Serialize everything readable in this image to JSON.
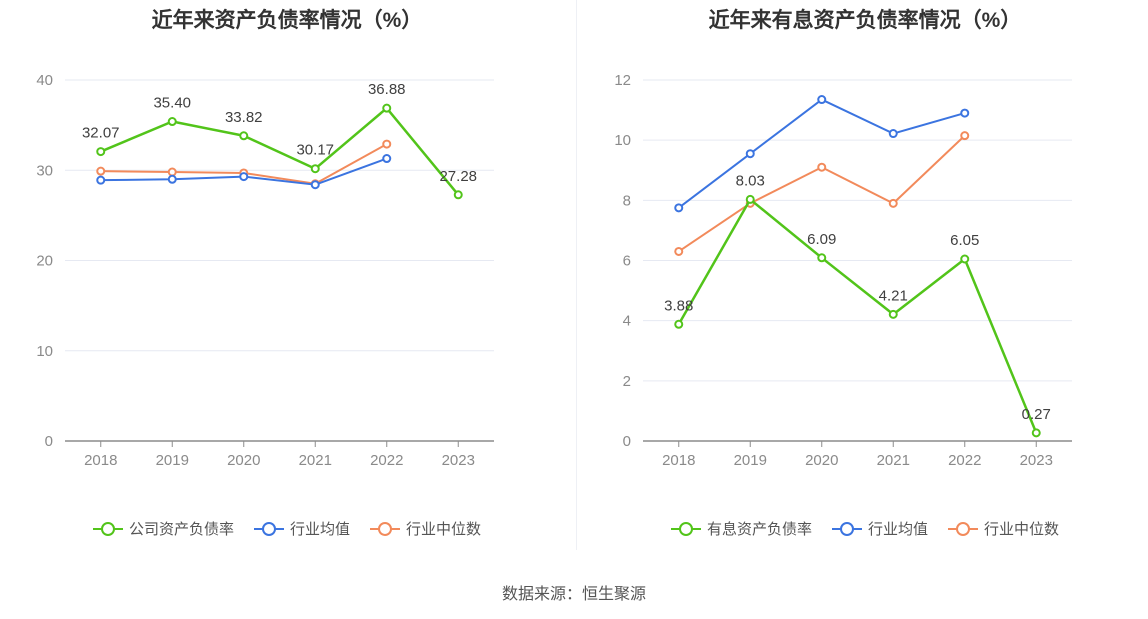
{
  "source": "数据来源：恒生聚源",
  "chart_data": [
    {
      "type": "line",
      "title": "近年来资产负债率情况（%）",
      "categories": [
        "2018",
        "2019",
        "2020",
        "2021",
        "2022",
        "2023"
      ],
      "ylim": [
        0,
        40
      ],
      "yticks": [
        0,
        10,
        20,
        30,
        40
      ],
      "grid": true,
      "legend_position": "bottom",
      "series": [
        {
          "name": "公司资产负债率",
          "color": "#52c41a",
          "values": [
            32.07,
            35.4,
            33.82,
            30.17,
            36.88,
            27.28
          ],
          "labels": [
            "32.07",
            "35.40",
            "33.82",
            "30.17",
            "36.88",
            "27.28"
          ]
        },
        {
          "name": "行业均值",
          "color": "#3b74e0",
          "values": [
            28.9,
            29.0,
            29.3,
            28.4,
            31.3,
            null
          ]
        },
        {
          "name": "行业中位数",
          "color": "#f28a5b",
          "values": [
            29.9,
            29.8,
            29.7,
            28.5,
            32.9,
            null
          ]
        }
      ]
    },
    {
      "type": "line",
      "title": "近年来有息资产负债率情况（%）",
      "categories": [
        "2018",
        "2019",
        "2020",
        "2021",
        "2022",
        "2023"
      ],
      "ylim": [
        0,
        12
      ],
      "yticks": [
        0,
        2,
        4,
        6,
        8,
        10,
        12
      ],
      "grid": true,
      "legend_position": "bottom",
      "series": [
        {
          "name": "有息资产负债率",
          "color": "#52c41a",
          "values": [
            3.88,
            8.03,
            6.09,
            4.21,
            6.05,
            0.27
          ],
          "labels": [
            "3.88",
            "8.03",
            "6.09",
            "4.21",
            "6.05",
            "0.27"
          ]
        },
        {
          "name": "行业均值",
          "color": "#3b74e0",
          "values": [
            7.75,
            9.55,
            11.35,
            10.22,
            10.9,
            null
          ]
        },
        {
          "name": "行业中位数",
          "color": "#f28a5b",
          "values": [
            6.3,
            7.9,
            9.1,
            7.9,
            10.15,
            null
          ]
        }
      ]
    }
  ]
}
